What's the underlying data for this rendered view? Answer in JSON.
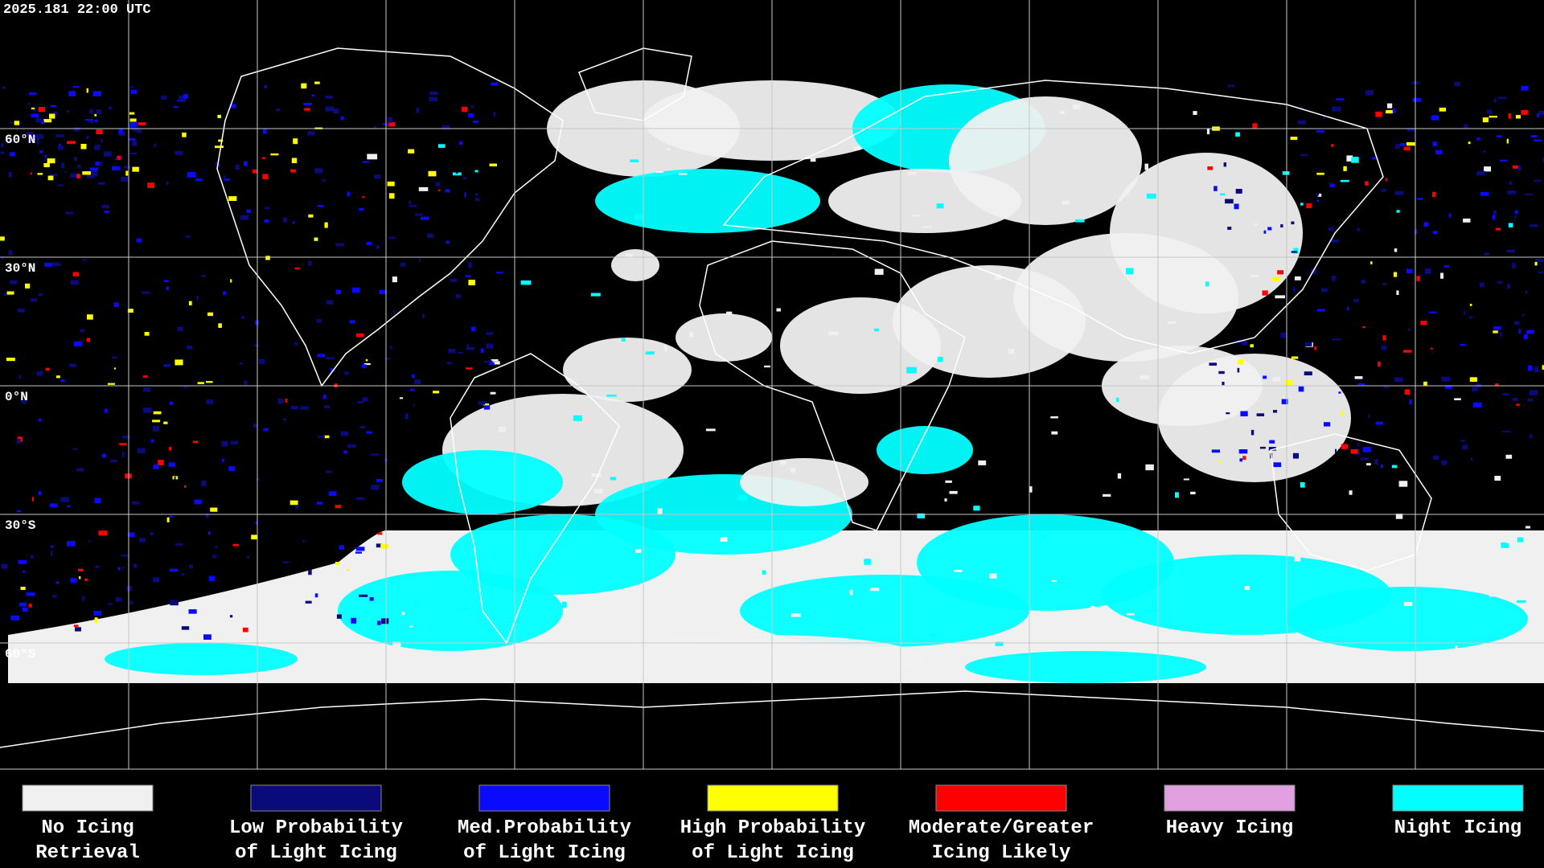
{
  "timestamp": "2025.181 22:00 UTC",
  "latitude_labels": [
    "60°N",
    "30°N",
    "0°N",
    "30°S",
    "60°S"
  ],
  "legend": [
    {
      "label": [
        "No Icing",
        "Retrieval"
      ],
      "color": "#f0f0f0"
    },
    {
      "label": [
        "Low Probability",
        "of Light Icing"
      ],
      "color": "#0a0a7a"
    },
    {
      "label": [
        "Med.Probability",
        "of Light Icing"
      ],
      "color": "#0a0aff"
    },
    {
      "label": [
        "High Probability",
        "of Light Icing"
      ],
      "color": "#ffff00"
    },
    {
      "label": [
        "Moderate/Greater",
        "Icing Likely"
      ],
      "color": "#ff0000"
    },
    {
      "label": [
        "Heavy Icing"
      ],
      "color": "#e0a0e0"
    },
    {
      "label": [
        "Night Icing"
      ],
      "color": "#00ffff"
    }
  ]
}
